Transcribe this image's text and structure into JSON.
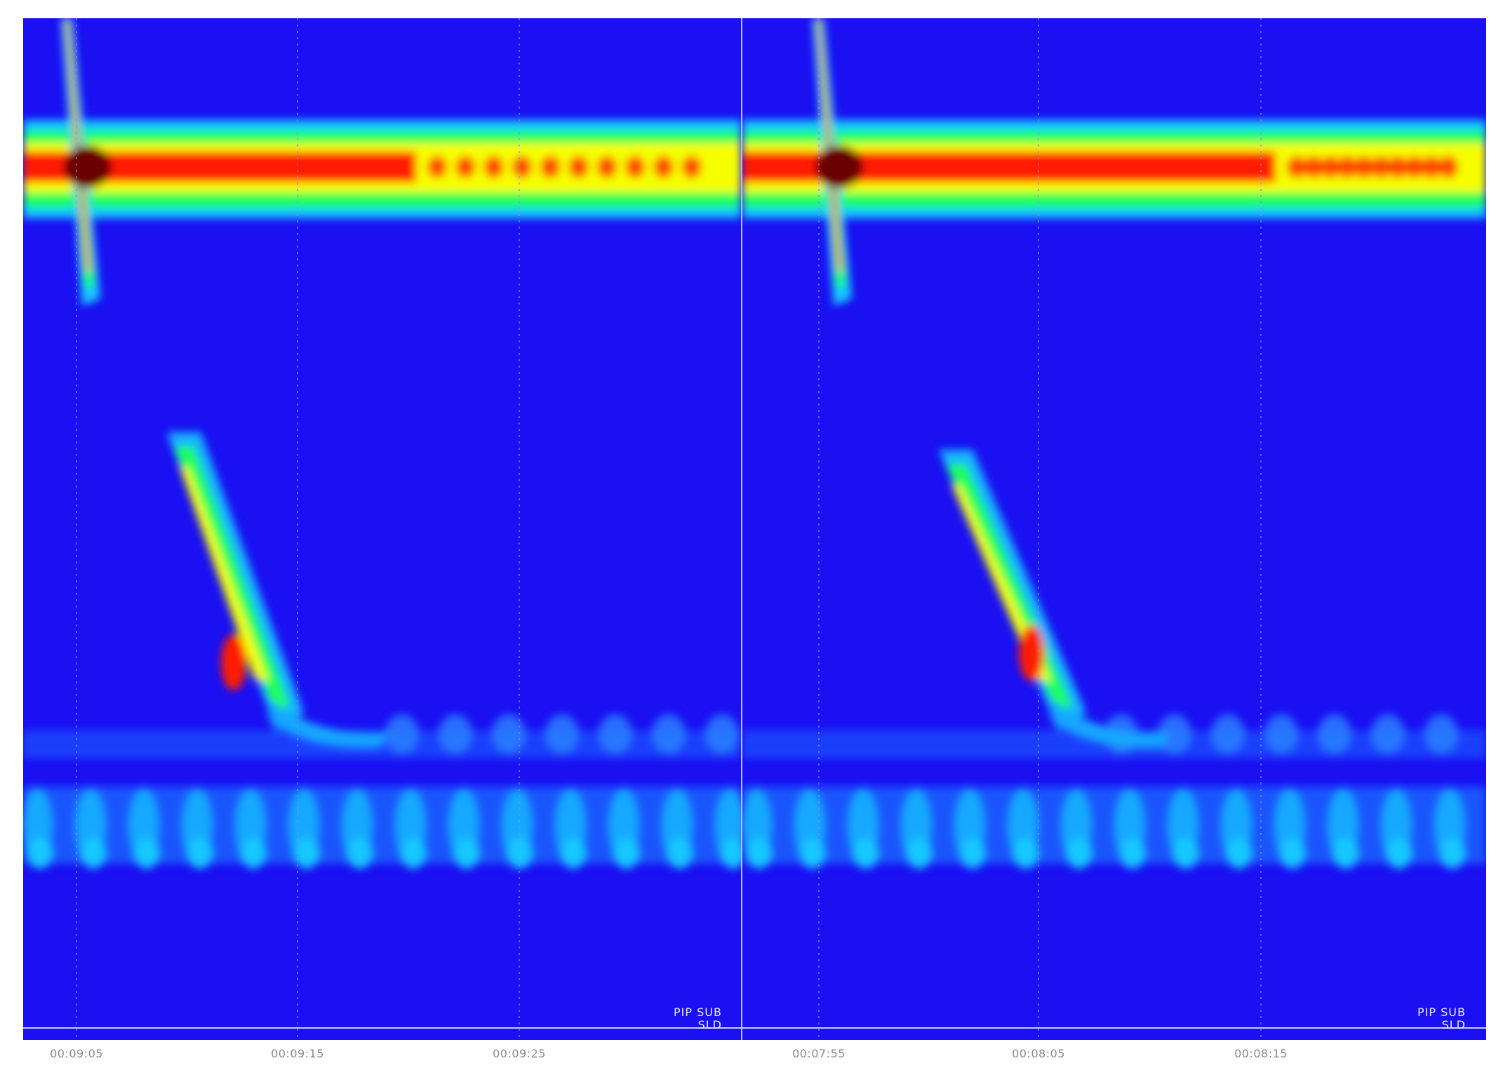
{
  "chart_data": [
    {
      "type": "heatmap",
      "x_tick_labels": [
        "00:09:05",
        "00:09:15",
        "00:09:25"
      ],
      "corner_labels": {
        "row1": "PIP  SUB",
        "row2": "SLD"
      },
      "grid": "dotted vertical lines at tick positions",
      "colormap": [
        "#1a10f2",
        "#19c8ff",
        "#1aff5a",
        "#f6ff00",
        "#ff1a00",
        "#6b0000"
      ]
    },
    {
      "type": "heatmap",
      "x_tick_labels": [
        "00:07:55",
        "00:08:05",
        "00:08:15"
      ],
      "corner_labels": {
        "row1": "PIP  SUB",
        "row2": "SLD"
      },
      "grid": "dotted vertical lines at tick positions",
      "colormap": [
        "#1a10f2",
        "#19c8ff",
        "#1aff5a",
        "#f6ff00",
        "#ff1a00",
        "#6b0000"
      ]
    }
  ]
}
